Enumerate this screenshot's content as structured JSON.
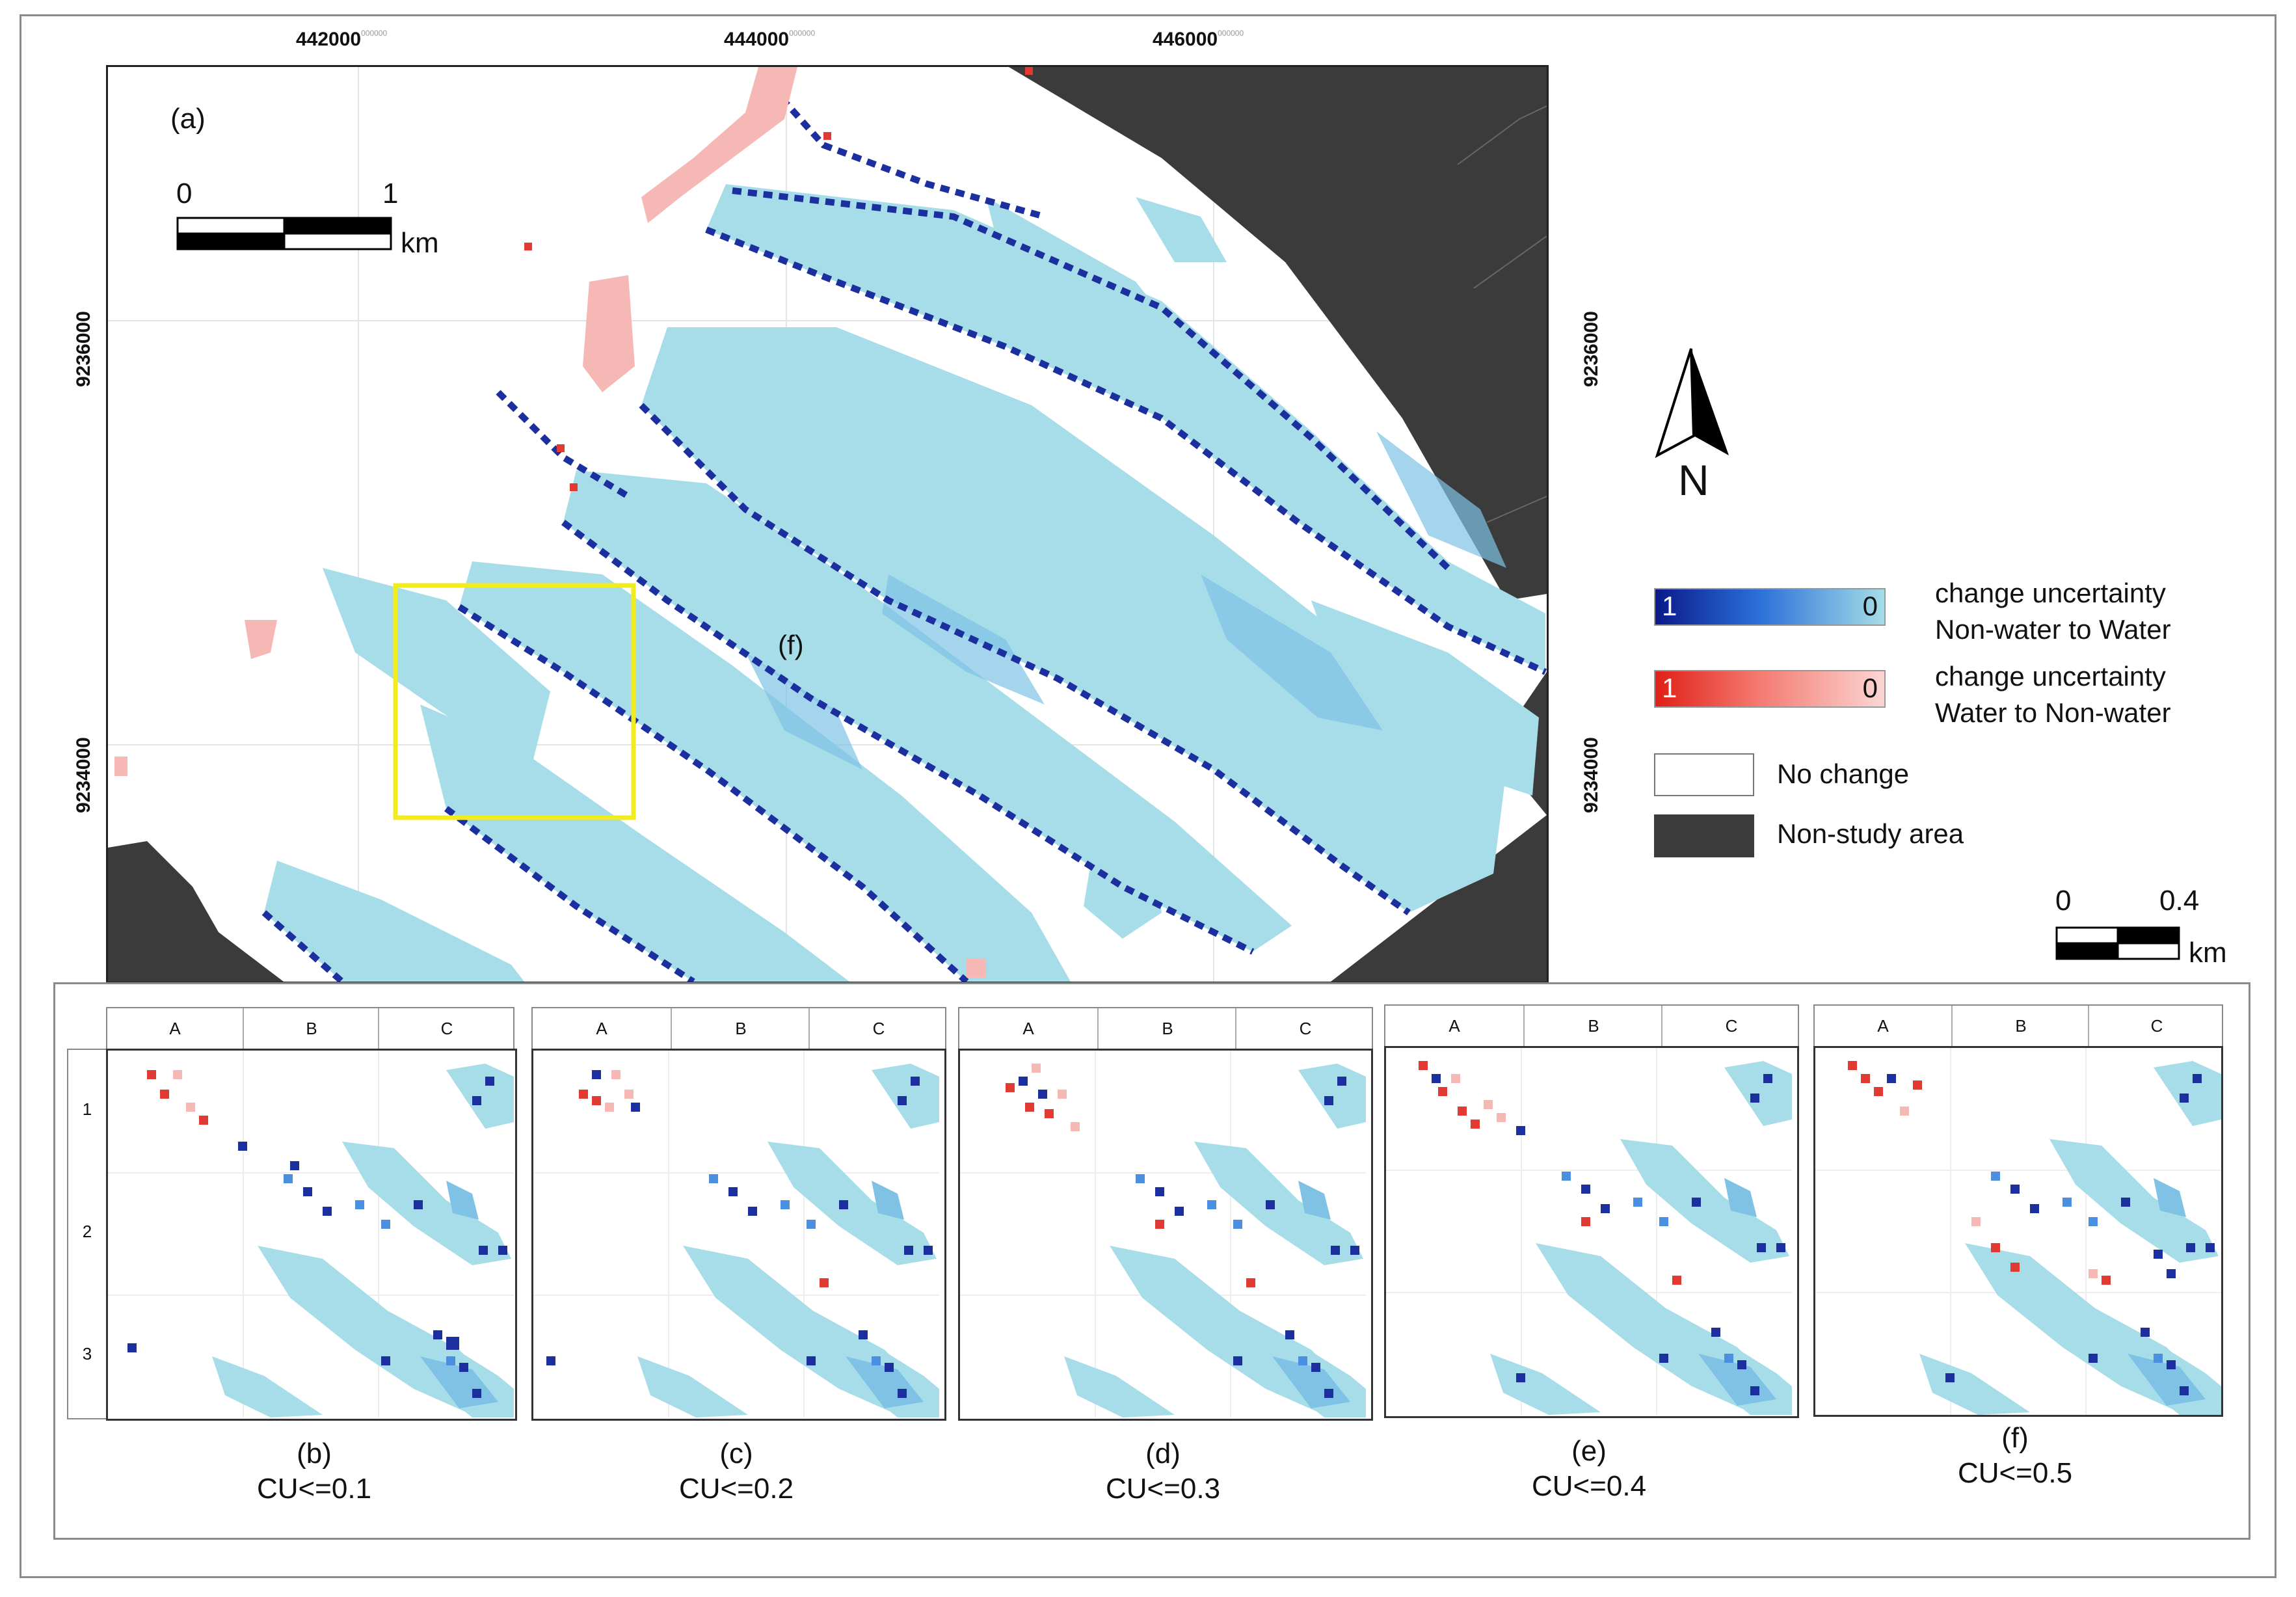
{
  "colors": {
    "nonstudy": "#3b3b3b",
    "water_light": "#a6dde8",
    "water_mid": "#7fc2e6",
    "water_dark": "#1c2f9e",
    "red_dark": "#e03a33",
    "red_light": "#f6b8b5",
    "highlight_box": "#f2ec1e",
    "frame": "#8a8a8a"
  },
  "main_map": {
    "panel_label": "(a)",
    "inset_marker": "(f)",
    "x_ticks": [
      {
        "label": "442000",
        "suffix": "000000"
      },
      {
        "label": "444000",
        "suffix": "000000"
      },
      {
        "label": "446000",
        "suffix": "000000"
      }
    ],
    "y_ticks": [
      {
        "label": "9236000",
        "suffix": "000000"
      },
      {
        "label": "9234000",
        "suffix": "000000"
      }
    ],
    "scalebar": {
      "start": "0",
      "end": "1",
      "unit": "km"
    }
  },
  "north_arrow": {
    "label": "N"
  },
  "legend": {
    "blue_ramp": {
      "high": "1",
      "low": "0",
      "line1": "change uncertainty",
      "line2": "Non-water to Water"
    },
    "red_ramp": {
      "high": "1",
      "low": "0",
      "line1": "change uncertainty",
      "line2": "Water to Non-water"
    },
    "no_change": "No change",
    "non_study": "Non-study area"
  },
  "inset_scalebar": {
    "start": "0",
    "end": "0.4",
    "unit": "km"
  },
  "inset_grid": {
    "columns": [
      "A",
      "B",
      "C"
    ],
    "rows": [
      "1",
      "2",
      "3"
    ]
  },
  "panels": [
    {
      "label": "(b)",
      "threshold": "CU<=0.1"
    },
    {
      "label": "(c)",
      "threshold": "CU<=0.2"
    },
    {
      "label": "(d)",
      "threshold": "CU<=0.3"
    },
    {
      "label": "(e)",
      "threshold": "CU<=0.4"
    },
    {
      "label": "(f)",
      "threshold": "CU<=0.5"
    }
  ]
}
